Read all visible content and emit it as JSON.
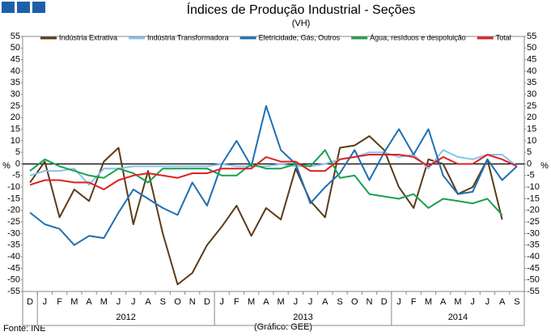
{
  "chart_data": {
    "type": "line",
    "title": "Índices de Produção Industrial - Seções",
    "subtitle": "(VH)",
    "ylabel": "%",
    "y2label": "%",
    "source": "Fonte: INE",
    "credit": "(Gráfico: GEE)",
    "categories": [
      "D",
      "J",
      "F",
      "M",
      "A",
      "M",
      "J",
      "J",
      "A",
      "S",
      "O",
      "N",
      "D",
      "J",
      "F",
      "M",
      "A",
      "M",
      "J",
      "J",
      "A",
      "S",
      "O",
      "N",
      "D",
      "J",
      "F",
      "M",
      "A",
      "M",
      "J",
      "J",
      "A",
      "S"
    ],
    "years": [
      "2012",
      "2013",
      "2014"
    ],
    "ylim": [
      -55,
      55
    ],
    "yticks": [
      -55,
      -50,
      -45,
      -40,
      -35,
      -30,
      -25,
      -20,
      -15,
      -10,
      -5,
      0,
      5,
      10,
      15,
      20,
      25,
      30,
      35,
      40,
      45,
      50,
      55
    ],
    "series": [
      {
        "name": "Indústria Extrativa",
        "color": "#5c3b17",
        "values": [
          -8,
          1,
          -23,
          -11,
          -16,
          1,
          7,
          -26,
          -3,
          -30,
          -52,
          -47,
          -35,
          -27,
          -18,
          -31,
          -19,
          -24,
          -2,
          -16,
          -23,
          7,
          8,
          12,
          6,
          -10,
          -19,
          2,
          0,
          -13,
          -10,
          2,
          -24,
          null
        ]
      },
      {
        "name": "Indústria Transformadora",
        "color": "#86c3ee",
        "values": [
          -5,
          -3,
          -3,
          -2,
          -9,
          -2,
          -2,
          -1,
          -1,
          -1,
          -1,
          -1,
          -1,
          0,
          -1,
          -1,
          -1,
          0,
          -1,
          -1,
          0,
          2,
          3,
          5,
          5,
          3,
          4,
          -2,
          6,
          3,
          2,
          4,
          4,
          -1
        ]
      },
      {
        "name": "Eletricidade, Gás, Outros",
        "color": "#1f6fb2",
        "values": [
          -21,
          -26,
          -28,
          -35,
          -31,
          -32,
          -21,
          -11,
          -15,
          -19,
          -22,
          -8,
          -18,
          0,
          10,
          -1,
          25,
          6,
          0,
          -17,
          -10,
          -4,
          6,
          -7,
          5,
          15,
          4,
          15,
          -5,
          -13,
          -12,
          2,
          -7,
          -1
        ]
      },
      {
        "name": "Água, resíduos e despoluição",
        "color": "#1aa050",
        "values": [
          -3,
          2,
          -1,
          -3,
          -5,
          -6,
          -2,
          -4,
          -8,
          -2,
          -2,
          -2,
          -2,
          -5,
          -5,
          0,
          -2,
          -2,
          0,
          -1,
          6,
          -6,
          -5,
          -13,
          -14,
          -15,
          -13,
          -19,
          -15,
          -16,
          -17,
          -15,
          -22,
          null
        ]
      },
      {
        "name": "Total",
        "color": "#e02020",
        "values": [
          -9,
          -7,
          -7,
          -8,
          -8,
          -11,
          -7,
          -5,
          -4,
          -5,
          -6,
          -4,
          -4,
          -2,
          -2,
          -2,
          3,
          1,
          1,
          -3,
          -3,
          2,
          3,
          4,
          4,
          4,
          3,
          -1,
          3,
          0,
          0,
          4,
          2,
          -1
        ]
      }
    ]
  }
}
